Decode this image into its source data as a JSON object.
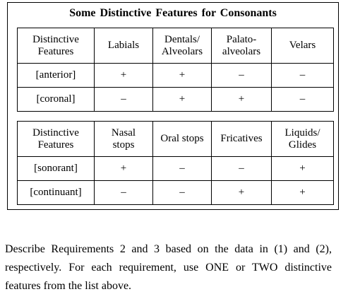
{
  "title": "Some Distinctive Features for Consonants",
  "table1": {
    "headers": [
      "Distinctive Features",
      "Labials",
      "Dentals/ Alveolars",
      "Palato-alveolars",
      "Velars"
    ],
    "header_lines": [
      [
        "Distinctive",
        "Features"
      ],
      [
        "Labials"
      ],
      [
        "Dentals/",
        "Alveolars"
      ],
      [
        "Palato-",
        "alveolars"
      ],
      [
        "Velars"
      ]
    ],
    "rows": [
      [
        "[anterior]",
        "+",
        "+",
        "–",
        "–"
      ],
      [
        "[coronal]",
        "–",
        "+",
        "+",
        "–"
      ]
    ]
  },
  "table2": {
    "headers": [
      "Distinctive Features",
      "Nasal stops",
      "Oral stops",
      "Fricatives",
      "Liquids/ Glides"
    ],
    "header_lines": [
      [
        "Distinctive",
        "Features"
      ],
      [
        "Nasal",
        "stops"
      ],
      [
        "Oral stops"
      ],
      [
        "Fricatives"
      ],
      [
        "Liquids/",
        "Glides"
      ]
    ],
    "rows": [
      [
        "[sonorant]",
        "+",
        "–",
        "–",
        "+"
      ],
      [
        "[continuant]",
        "–",
        "–",
        "+",
        "+"
      ]
    ]
  },
  "instructions": "Describe Requirements 2 and 3 based on the data in (1) and (2), respectively. For each requirement, use ONE or TWO distinctive features from the list above."
}
